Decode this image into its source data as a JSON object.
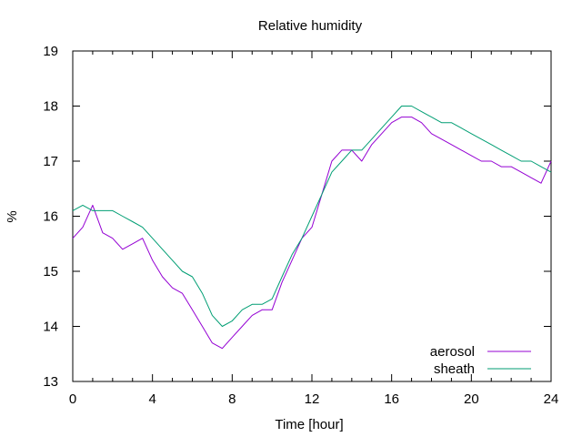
{
  "chart_data": {
    "type": "line",
    "title": "Relative humidity",
    "xlabel": "Time [hour]",
    "ylabel": "%",
    "xlim": [
      0,
      24
    ],
    "ylim": [
      13,
      19
    ],
    "xticks": [
      0,
      4,
      8,
      12,
      16,
      20,
      24
    ],
    "yticks": [
      13,
      14,
      15,
      16,
      17,
      18,
      19
    ],
    "xtick_labels": [
      "0",
      "4",
      "8",
      "12",
      "16",
      "20",
      "24"
    ],
    "ytick_labels": [
      "13",
      "14",
      "15",
      "16",
      "17",
      "18",
      "19"
    ],
    "grid": false,
    "legend_position": "bottom-right",
    "series": [
      {
        "name": "aerosol",
        "color": "#9400d3",
        "x": [
          0,
          0.5,
          1,
          1.5,
          2,
          2.5,
          3,
          3.5,
          4,
          4.5,
          5,
          5.5,
          6,
          6.5,
          7,
          7.5,
          8,
          8.5,
          9,
          9.5,
          10,
          10.5,
          11,
          11.5,
          12,
          12.5,
          13,
          13.5,
          14,
          14.5,
          15,
          15.5,
          16,
          16.5,
          17,
          17.5,
          18,
          18.5,
          19,
          19.5,
          20,
          20.5,
          21,
          21.5,
          22,
          22.5,
          23,
          23.5,
          24
        ],
        "y": [
          15.6,
          15.8,
          16.2,
          15.7,
          15.6,
          15.4,
          15.5,
          15.6,
          15.2,
          14.9,
          14.7,
          14.6,
          14.3,
          14.0,
          13.7,
          13.6,
          13.8,
          14.0,
          14.2,
          14.3,
          14.3,
          14.8,
          15.2,
          15.6,
          15.8,
          16.4,
          17.0,
          17.2,
          17.2,
          17.0,
          17.3,
          17.5,
          17.7,
          17.8,
          17.8,
          17.7,
          17.5,
          17.4,
          17.3,
          17.2,
          17.1,
          17.0,
          17.0,
          16.9,
          16.9,
          16.8,
          16.7,
          16.6,
          17.0
        ]
      },
      {
        "name": "sheath",
        "color": "#009e73",
        "x": [
          0,
          0.5,
          1,
          1.5,
          2,
          2.5,
          3,
          3.5,
          4,
          4.5,
          5,
          5.5,
          6,
          6.5,
          7,
          7.5,
          8,
          8.5,
          9,
          9.5,
          10,
          10.5,
          11,
          11.5,
          12,
          12.5,
          13,
          13.5,
          14,
          14.5,
          15,
          15.5,
          16,
          16.5,
          17,
          17.5,
          18,
          18.5,
          19,
          19.5,
          20,
          20.5,
          21,
          21.5,
          22,
          22.5,
          23,
          23.5,
          24
        ],
        "y": [
          16.1,
          16.2,
          16.1,
          16.1,
          16.1,
          16.0,
          15.9,
          15.8,
          15.6,
          15.4,
          15.2,
          15.0,
          14.9,
          14.6,
          14.2,
          14.0,
          14.1,
          14.3,
          14.4,
          14.4,
          14.5,
          14.9,
          15.3,
          15.6,
          16.0,
          16.4,
          16.8,
          17.0,
          17.2,
          17.2,
          17.4,
          17.6,
          17.8,
          18.0,
          18.0,
          17.9,
          17.8,
          17.7,
          17.7,
          17.6,
          17.5,
          17.4,
          17.3,
          17.2,
          17.1,
          17.0,
          17.0,
          16.9,
          16.8
        ]
      }
    ]
  }
}
